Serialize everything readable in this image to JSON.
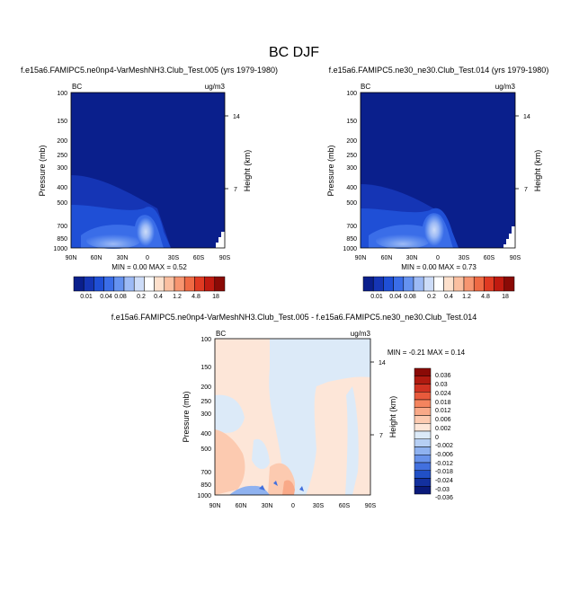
{
  "page_title": "BC DJF",
  "chart_data": [
    {
      "type": "heatmap",
      "title": "f.e15a6.FAMIPC5.ne0np4-VarMeshNH3.Club_Test.005 (yrs 1979-1980)",
      "left_label": "BC",
      "units": "ug/m3",
      "ylabel": "Pressure (mb)",
      "y2label": "Height (km)",
      "x_ticks": [
        "90N",
        "60N",
        "30N",
        "0",
        "30S",
        "60S",
        "90S"
      ],
      "y_ticks": [
        "100",
        "150",
        "200",
        "250",
        "300",
        "400",
        "500",
        "700",
        "850",
        "1000"
      ],
      "y2_ticks": [
        "14",
        "7"
      ],
      "stats": "MIN =  0.00  MAX =  0.52",
      "min": 0.0,
      "max": 0.52,
      "colorbar_labels": [
        "0.01",
        "0.04",
        "0.08",
        "0.2",
        "0.4",
        "1.2",
        "4.8",
        "18"
      ],
      "colorbar_colors": [
        "#0a1f8c",
        "#1535b5",
        "#1f4fd6",
        "#3a6de8",
        "#6592f0",
        "#9dbaf5",
        "#cddcf8",
        "#ffffff",
        "#fde0cc",
        "#fbbfa0",
        "#f79570",
        "#ef6a44",
        "#e03a22",
        "#c01a10",
        "#8a0a06"
      ]
    },
    {
      "type": "heatmap",
      "title": "f.e15a6.FAMIPC5.ne30_ne30.Club_Test.014 (yrs 1979-1980)",
      "left_label": "BC",
      "units": "ug/m3",
      "ylabel": "Pressure (mb)",
      "y2label": "Height (km)",
      "x_ticks": [
        "90N",
        "60N",
        "30N",
        "0",
        "30S",
        "60S",
        "90S"
      ],
      "y_ticks": [
        "100",
        "150",
        "200",
        "250",
        "300",
        "400",
        "500",
        "700",
        "850",
        "1000"
      ],
      "y2_ticks": [
        "14",
        "7"
      ],
      "stats": "MIN =  0.00  MAX =  0.73",
      "min": 0.0,
      "max": 0.73,
      "colorbar_labels": [
        "0.01",
        "0.04",
        "0.08",
        "0.2",
        "0.4",
        "1.2",
        "4.8",
        "18"
      ],
      "colorbar_colors": [
        "#0a1f8c",
        "#1535b5",
        "#1f4fd6",
        "#3a6de8",
        "#6592f0",
        "#9dbaf5",
        "#cddcf8",
        "#ffffff",
        "#fde0cc",
        "#fbbfa0",
        "#f79570",
        "#ef6a44",
        "#e03a22",
        "#c01a10",
        "#8a0a06"
      ]
    },
    {
      "type": "heatmap",
      "title": "f.e15a6.FAMIPC5.ne0np4-VarMeshNH3.Club_Test.005 - f.e15a6.FAMIPC5.ne30_ne30.Club_Test.014",
      "left_label": "BC",
      "units": "ug/m3",
      "ylabel": "Pressure (mb)",
      "y2label": "Height (km)",
      "x_ticks": [
        "90N",
        "60N",
        "30N",
        "0",
        "30S",
        "60S",
        "90S"
      ],
      "y_ticks": [
        "100",
        "150",
        "200",
        "250",
        "300",
        "400",
        "500",
        "700",
        "850",
        "1000"
      ],
      "y2_ticks": [
        "14",
        "7"
      ],
      "stats": "MIN = -0.21  MAX =  0.14",
      "min": -0.21,
      "max": 0.14,
      "colorbar_labels": [
        "0.036",
        "0.03",
        "0.024",
        "0.018",
        "0.012",
        "0.006",
        "0.002",
        "0",
        "-0.002",
        "-0.006",
        "-0.012",
        "-0.018",
        "-0.024",
        "-0.03",
        "-0.036"
      ],
      "colorbar_colors": [
        "#8a0a06",
        "#b01a10",
        "#d03222",
        "#e85a3c",
        "#f4845e",
        "#f9a988",
        "#fccab0",
        "#fde6d8",
        "#dceaf8",
        "#b6cff4",
        "#8fb2f0",
        "#6892ea",
        "#4270de",
        "#2150c6",
        "#13309e",
        "#0a1a7a"
      ]
    }
  ]
}
